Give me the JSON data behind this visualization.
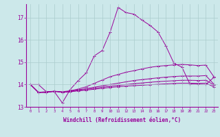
{
  "xlabel": "Windchill (Refroidissement éolien,°C)",
  "background_color": "#cce8ea",
  "grid_color": "#aacccc",
  "line_color": "#990099",
  "axis_bg": "#cce8ea",
  "xmin": -0.5,
  "xmax": 23.5,
  "ymin": 13.0,
  "ymax": 17.6,
  "ytop_label": "17",
  "x": [
    0,
    1,
    2,
    3,
    4,
    5,
    6,
    7,
    8,
    9,
    10,
    11,
    12,
    13,
    14,
    15,
    16,
    17,
    18,
    19,
    20,
    21,
    22,
    23
  ],
  "series": [
    [
      14.0,
      14.0,
      13.68,
      13.68,
      13.18,
      13.78,
      14.18,
      14.52,
      15.28,
      15.52,
      16.35,
      17.45,
      17.22,
      17.15,
      16.88,
      16.65,
      16.35,
      15.72,
      14.95,
      14.78,
      14.02,
      14.02,
      14.0,
      14.32
    ],
    [
      14.0,
      13.65,
      13.68,
      13.7,
      13.68,
      13.72,
      13.8,
      13.9,
      14.05,
      14.2,
      14.35,
      14.45,
      14.55,
      14.62,
      14.7,
      14.77,
      14.82,
      14.85,
      14.88,
      14.9,
      14.88,
      14.85,
      14.87,
      14.35
    ],
    [
      14.0,
      13.65,
      13.65,
      13.7,
      13.65,
      13.7,
      13.76,
      13.82,
      13.88,
      13.94,
      14.0,
      14.06,
      14.12,
      14.18,
      14.22,
      14.26,
      14.3,
      14.33,
      14.36,
      14.38,
      14.38,
      14.38,
      14.4,
      14.02
    ],
    [
      14.0,
      13.65,
      13.65,
      13.7,
      13.65,
      13.68,
      13.73,
      13.78,
      13.83,
      13.88,
      13.92,
      13.96,
      14.0,
      14.04,
      14.07,
      14.1,
      14.13,
      14.15,
      14.17,
      14.19,
      14.19,
      14.18,
      14.19,
      13.98
    ],
    [
      14.0,
      13.65,
      13.65,
      13.7,
      13.65,
      13.68,
      13.72,
      13.75,
      13.79,
      13.83,
      13.87,
      13.9,
      13.93,
      13.95,
      13.97,
      13.99,
      14.01,
      14.03,
      14.05,
      14.06,
      14.06,
      14.05,
      14.06,
      13.9
    ]
  ],
  "xtick_labels": [
    "0",
    "1",
    "2",
    "3",
    "4",
    "5",
    "6",
    "7",
    "8",
    "9",
    "10",
    "11",
    "12",
    "13",
    "14",
    "15",
    "16",
    "17",
    "18",
    "19",
    "20",
    "21",
    "22",
    "23"
  ],
  "ytick_positions": [
    13,
    14,
    15,
    16,
    17
  ],
  "ytick_labels": [
    "13",
    "14",
    "15",
    "16",
    "17"
  ]
}
